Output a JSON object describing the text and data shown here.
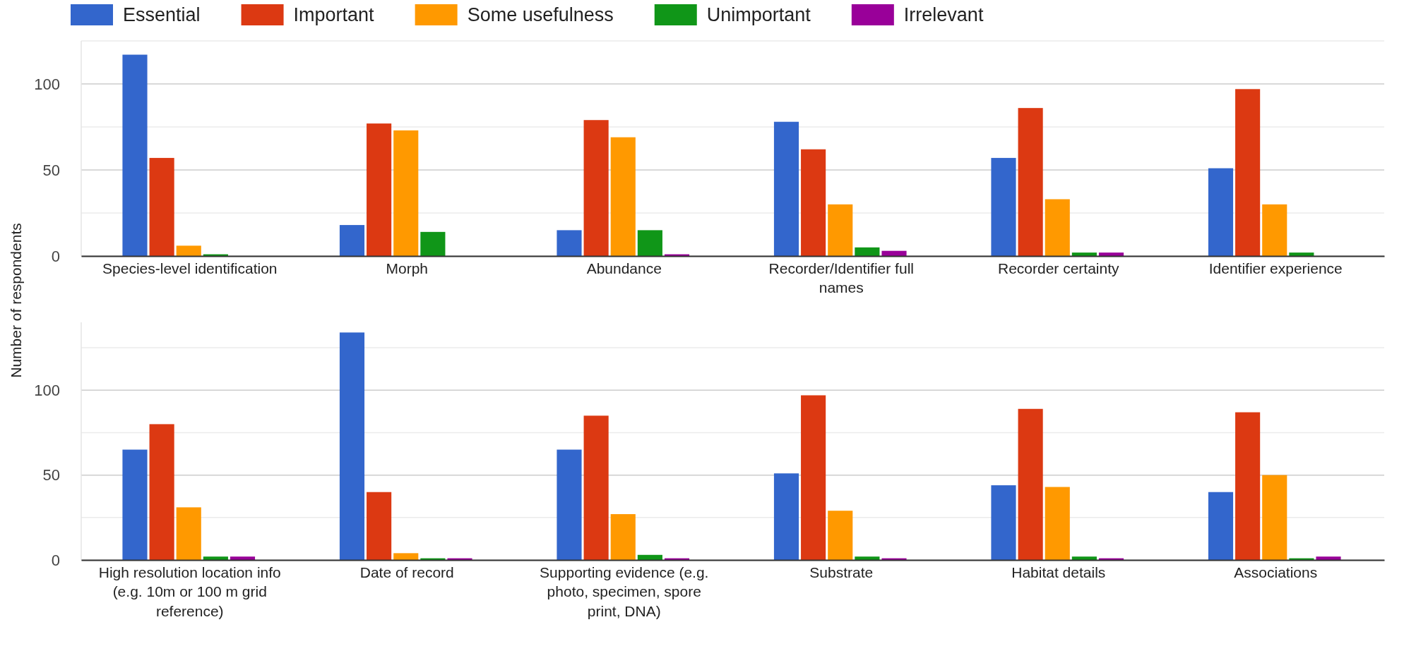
{
  "chart_data": [
    {
      "type": "bar",
      "ylabel": "Number of respondents",
      "legend": "top",
      "grid": "y",
      "ylim": [
        0,
        125
      ],
      "yticks": [
        0,
        {
          "value": 25,
          "label": null
        },
        50,
        {
          "value": 75,
          "label": null
        },
        100,
        {
          "value": 125,
          "label": null
        }
      ],
      "categories": [
        "Species-level identification",
        "Morph",
        "Abundance",
        "Recorder/Identifier full names",
        "Recorder certainty",
        "Identifier experience"
      ],
      "series": [
        {
          "name": "Essential",
          "color": "#3366cc",
          "values": [
            117,
            18,
            15,
            78,
            57,
            51
          ]
        },
        {
          "name": "Important",
          "color": "#dc3912",
          "values": [
            57,
            77,
            79,
            62,
            86,
            97
          ]
        },
        {
          "name": "Some usefulness",
          "color": "#ff9900",
          "values": [
            6,
            73,
            69,
            30,
            33,
            30
          ]
        },
        {
          "name": "Unimportant",
          "color": "#109618",
          "values": [
            1,
            14,
            15,
            5,
            2,
            2
          ]
        },
        {
          "name": "Irrelevant",
          "color": "#990099",
          "values": [
            0,
            0,
            1,
            3,
            2,
            0
          ]
        }
      ]
    },
    {
      "type": "bar",
      "grid": "y",
      "ylim": [
        0,
        140
      ],
      "yticks": [
        0,
        {
          "value": 25,
          "label": null
        },
        50,
        {
          "value": 75,
          "label": null
        },
        100,
        {
          "value": 125,
          "label": null
        }
      ],
      "categories": [
        "High resolution location info (e.g. 10m or 100 m grid reference)",
        "Date of record",
        "Supporting evidence (e.g. photo, specimen, spore print, DNA)",
        "Substrate",
        "Habitat details",
        "Associations"
      ],
      "series": [
        {
          "color": "#3366cc",
          "values": [
            65,
            134,
            65,
            51,
            44,
            40
          ]
        },
        {
          "color": "#dc3912",
          "values": [
            80,
            40,
            85,
            97,
            89,
            87
          ]
        },
        {
          "color": "#ff9900",
          "values": [
            31,
            4,
            27,
            29,
            43,
            50
          ]
        },
        {
          "color": "#109618",
          "values": [
            2,
            1,
            3,
            2,
            2,
            1
          ]
        },
        {
          "color": "#990099",
          "values": [
            2,
            1,
            1,
            1,
            1,
            2
          ]
        }
      ]
    }
  ]
}
